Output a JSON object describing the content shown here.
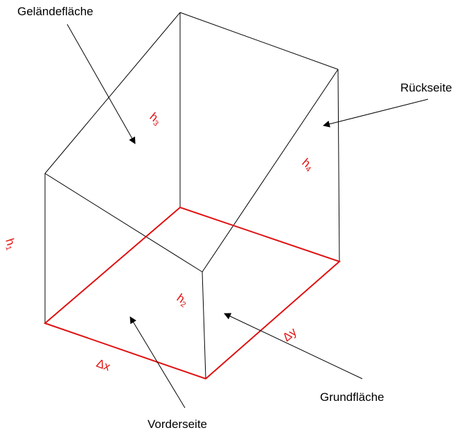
{
  "colors": {
    "outline": "#000000",
    "base": "#e01010",
    "arrow": "#000000"
  },
  "labels": {
    "gelaendeflaeche": "Geländefläche",
    "rueckseite": "Rückseite",
    "vorderseite": "Vorderseite",
    "grundflaeche": "Grundfläche"
  },
  "heights": {
    "h1": {
      "base": "h",
      "sub": "1"
    },
    "h2": {
      "base": "h",
      "sub": "2"
    },
    "h3": {
      "base": "h",
      "sub": "3"
    },
    "h4": {
      "base": "h",
      "sub": "4"
    }
  },
  "deltas": {
    "dx": "Δx",
    "dy": "Δy"
  }
}
